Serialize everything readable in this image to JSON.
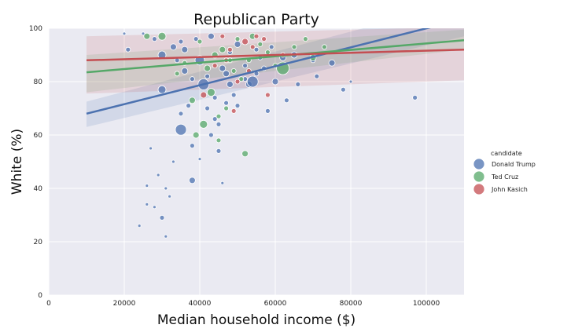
{
  "chart_data": {
    "type": "scatter",
    "title": "Republican Party",
    "xlabel": "Median household income ($)",
    "ylabel": "White (%)",
    "xlim": [
      0,
      110000
    ],
    "ylim": [
      0,
      100
    ],
    "x_ticks": [
      "0",
      "20000",
      "40000",
      "60000",
      "80000",
      "100000"
    ],
    "y_ticks": [
      "0",
      "20",
      "40",
      "60",
      "80",
      "100"
    ],
    "grid": true,
    "legend": {
      "title": "candidate",
      "placement": "right",
      "entries": [
        "Donald Trump",
        "Ted Cruz",
        "John Kasich"
      ]
    },
    "colors": {
      "Donald Trump": "#4c72b0",
      "Ted Cruz": "#55a868",
      "John Kasich": "#c44e52",
      "background": "#eaeaf2"
    },
    "regression": [
      {
        "name": "Donald Trump",
        "x": [
          10000,
          110000
        ],
        "y": [
          68,
          103.5
        ],
        "ci_lower": [
          63,
          97
        ],
        "ci_upper": [
          72.5,
          110
        ]
      },
      {
        "name": "Ted Cruz",
        "x": [
          10000,
          110000
        ],
        "y": [
          83.5,
          95.5
        ],
        "ci_lower": [
          76,
          92
        ],
        "ci_upper": [
          90,
          99.5
        ]
      },
      {
        "name": "John Kasich",
        "x": [
          10000,
          110000
        ],
        "y": [
          88,
          92
        ],
        "ci_lower": [
          75.5,
          80.5
        ],
        "ci_upper": [
          97,
          100.5
        ]
      }
    ],
    "series": [
      {
        "name": "Donald Trump",
        "points": [
          [
            20000,
            98,
            2
          ],
          [
            21000,
            92,
            3
          ],
          [
            25000,
            98,
            2
          ],
          [
            28000,
            96,
            3
          ],
          [
            30000,
            90,
            5
          ],
          [
            30000,
            77,
            5
          ],
          [
            33000,
            93,
            4
          ],
          [
            35000,
            62,
            7
          ],
          [
            35000,
            95,
            3
          ],
          [
            36000,
            84,
            4
          ],
          [
            37000,
            71,
            3
          ],
          [
            38000,
            43,
            4
          ],
          [
            38000,
            81,
            3
          ],
          [
            40000,
            88,
            6
          ],
          [
            42000,
            82,
            3
          ],
          [
            41000,
            79,
            7
          ],
          [
            43000,
            60,
            3
          ],
          [
            44000,
            74,
            3
          ],
          [
            45000,
            64,
            3
          ],
          [
            45000,
            54,
            3
          ],
          [
            46000,
            85,
            4
          ],
          [
            47000,
            83,
            4
          ],
          [
            48000,
            79,
            4
          ],
          [
            49000,
            75,
            3
          ],
          [
            50000,
            94,
            4
          ],
          [
            52000,
            81,
            3
          ],
          [
            53000,
            79,
            4
          ],
          [
            54000,
            80,
            7
          ],
          [
            55000,
            92,
            3
          ],
          [
            56000,
            89,
            3
          ],
          [
            57000,
            85,
            3
          ],
          [
            58000,
            69,
            3
          ],
          [
            60000,
            80,
            4
          ],
          [
            62000,
            89,
            4
          ],
          [
            63000,
            73,
            3
          ],
          [
            65000,
            90,
            4
          ],
          [
            66000,
            79,
            3
          ],
          [
            70000,
            88,
            3
          ],
          [
            71000,
            82,
            3
          ],
          [
            75000,
            87,
            4
          ],
          [
            78000,
            77,
            3
          ],
          [
            80000,
            80,
            2
          ],
          [
            97000,
            74,
            3
          ],
          [
            27000,
            55,
            2
          ],
          [
            26000,
            41,
            2
          ],
          [
            28000,
            33,
            2
          ],
          [
            30000,
            29,
            3
          ],
          [
            31000,
            22,
            2
          ],
          [
            32000,
            37,
            2
          ],
          [
            33000,
            50,
            2
          ],
          [
            29000,
            45,
            2
          ],
          [
            40000,
            51,
            2
          ],
          [
            46000,
            42,
            2
          ],
          [
            35000,
            68,
            3
          ],
          [
            38000,
            56,
            3
          ],
          [
            42000,
            70,
            3
          ],
          [
            44000,
            66,
            3
          ],
          [
            47000,
            72,
            3
          ],
          [
            50000,
            71,
            3
          ],
          [
            34000,
            88,
            3
          ],
          [
            36000,
            92,
            4
          ],
          [
            39000,
            96,
            3
          ],
          [
            43000,
            97,
            4
          ],
          [
            48000,
            91,
            3
          ],
          [
            52000,
            86,
            3
          ],
          [
            55000,
            83,
            3
          ],
          [
            59000,
            93,
            3
          ],
          [
            24000,
            26,
            2
          ],
          [
            26000,
            34,
            2
          ],
          [
            31000,
            40,
            2
          ]
        ]
      },
      {
        "name": "Ted Cruz",
        "points": [
          [
            26000,
            97,
            4
          ],
          [
            30000,
            97,
            5
          ],
          [
            34000,
            83,
            3
          ],
          [
            36000,
            87,
            3
          ],
          [
            38000,
            73,
            4
          ],
          [
            39000,
            60,
            4
          ],
          [
            41000,
            64,
            5
          ],
          [
            42000,
            85,
            4
          ],
          [
            43000,
            76,
            5
          ],
          [
            44000,
            90,
            4
          ],
          [
            45000,
            67,
            3
          ],
          [
            46000,
            92,
            4
          ],
          [
            47000,
            70,
            3
          ],
          [
            48000,
            88,
            3
          ],
          [
            49000,
            84,
            3
          ],
          [
            50000,
            96,
            3
          ],
          [
            51000,
            81,
            3
          ],
          [
            52000,
            53,
            4
          ],
          [
            53000,
            88,
            3
          ],
          [
            54000,
            97,
            4
          ],
          [
            56000,
            94,
            3
          ],
          [
            58000,
            91,
            3
          ],
          [
            60000,
            86,
            3
          ],
          [
            62000,
            85,
            8
          ],
          [
            65000,
            93,
            3
          ],
          [
            68000,
            96,
            3
          ],
          [
            70000,
            89,
            4
          ],
          [
            73000,
            93,
            3
          ],
          [
            45000,
            58,
            3
          ],
          [
            40000,
            95,
            3
          ]
        ]
      },
      {
        "name": "John Kasich",
        "points": [
          [
            41000,
            75,
            4
          ],
          [
            44000,
            86,
            3
          ],
          [
            46000,
            97,
            3
          ],
          [
            48000,
            92,
            3
          ],
          [
            50000,
            80,
            3
          ],
          [
            52000,
            95,
            4
          ],
          [
            54000,
            93,
            3
          ],
          [
            55000,
            97,
            3
          ],
          [
            57000,
            96,
            3
          ],
          [
            58000,
            75,
            3
          ],
          [
            49000,
            69,
            3
          ],
          [
            62000,
            90,
            3
          ],
          [
            47000,
            88,
            3
          ],
          [
            53000,
            84,
            3
          ]
        ]
      }
    ]
  }
}
